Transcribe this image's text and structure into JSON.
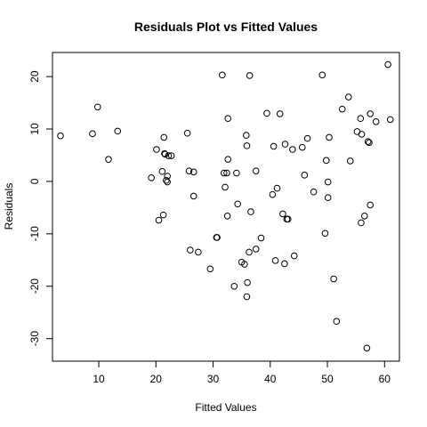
{
  "chart_data": {
    "type": "scatter",
    "title": "Residuals Plot vs Fitted Values",
    "xlabel": "Fitted Values",
    "ylabel": "Residuals",
    "xlim": [
      1.9,
      62.6
    ],
    "ylim": [
      -34.3,
      24.6
    ],
    "xticks": [
      10,
      20,
      30,
      40,
      50,
      60
    ],
    "yticks": [
      -30,
      -20,
      -10,
      0,
      10,
      20
    ],
    "grid": false,
    "points": [
      [
        3.3,
        8.7
      ],
      [
        8.9,
        9.1
      ],
      [
        9.8,
        14.2
      ],
      [
        11.7,
        4.2
      ],
      [
        13.3,
        9.6
      ],
      [
        19.2,
        0.7
      ],
      [
        20.1,
        6.1
      ],
      [
        20.5,
        -7.4
      ],
      [
        21.1,
        1.9
      ],
      [
        21.3,
        -6.4
      ],
      [
        21.4,
        8.4
      ],
      [
        21.5,
        5.3
      ],
      [
        21.6,
        5.2
      ],
      [
        21.8,
        0.2
      ],
      [
        22.0,
        -0.1
      ],
      [
        22.2,
        4.9
      ],
      [
        22.7,
        4.9
      ],
      [
        22.0,
        1.0
      ],
      [
        25.5,
        9.2
      ],
      [
        25.8,
        2.0
      ],
      [
        26.0,
        -13.1
      ],
      [
        26.6,
        1.8
      ],
      [
        26.6,
        -2.8
      ],
      [
        27.4,
        -13.5
      ],
      [
        29.5,
        -16.7
      ],
      [
        30.6,
        -10.7
      ],
      [
        30.7,
        -10.7
      ],
      [
        31.6,
        20.3
      ],
      [
        31.9,
        1.6
      ],
      [
        32.1,
        -1.1
      ],
      [
        32.4,
        1.6
      ],
      [
        32.5,
        -6.6
      ],
      [
        32.6,
        4.2
      ],
      [
        32.6,
        12.0
      ],
      [
        33.7,
        -20.0
      ],
      [
        34.1,
        1.6
      ],
      [
        34.3,
        -4.3
      ],
      [
        35.0,
        -15.4
      ],
      [
        35.5,
        -15.8
      ],
      [
        35.8,
        8.8
      ],
      [
        35.9,
        6.8
      ],
      [
        35.9,
        -22.0
      ],
      [
        36.0,
        -19.3
      ],
      [
        36.3,
        -13.5
      ],
      [
        36.4,
        20.2
      ],
      [
        36.6,
        -5.8
      ],
      [
        37.5,
        2.0
      ],
      [
        37.5,
        -12.9
      ],
      [
        38.4,
        -10.8
      ],
      [
        39.4,
        13.0
      ],
      [
        40.4,
        -2.5
      ],
      [
        40.6,
        6.7
      ],
      [
        40.9,
        -15.1
      ],
      [
        41.2,
        -1.3
      ],
      [
        41.7,
        12.9
      ],
      [
        42.2,
        -6.2
      ],
      [
        42.5,
        -15.7
      ],
      [
        42.6,
        7.1
      ],
      [
        42.9,
        -7.2
      ],
      [
        43.1,
        -7.2
      ],
      [
        43.9,
        6.1
      ],
      [
        44.2,
        -14.2
      ],
      [
        45.6,
        6.5
      ],
      [
        46.0,
        1.2
      ],
      [
        46.5,
        8.2
      ],
      [
        47.6,
        -2.0
      ],
      [
        49.1,
        20.3
      ],
      [
        49.6,
        -9.9
      ],
      [
        49.8,
        4.0
      ],
      [
        50.1,
        -0.1
      ],
      [
        50.1,
        -3.1
      ],
      [
        50.3,
        8.4
      ],
      [
        51.1,
        -18.6
      ],
      [
        51.6,
        -26.7
      ],
      [
        52.6,
        13.8
      ],
      [
        53.7,
        16.1
      ],
      [
        54.0,
        3.9
      ],
      [
        55.2,
        9.5
      ],
      [
        55.8,
        12.0
      ],
      [
        55.9,
        -7.9
      ],
      [
        56.0,
        9.0
      ],
      [
        56.5,
        -6.6
      ],
      [
        56.9,
        -31.8
      ],
      [
        57.1,
        7.6
      ],
      [
        57.3,
        7.4
      ],
      [
        57.5,
        -4.5
      ],
      [
        57.5,
        12.9
      ],
      [
        58.5,
        11.4
      ],
      [
        60.6,
        22.3
      ],
      [
        61.0,
        11.8
      ]
    ]
  }
}
